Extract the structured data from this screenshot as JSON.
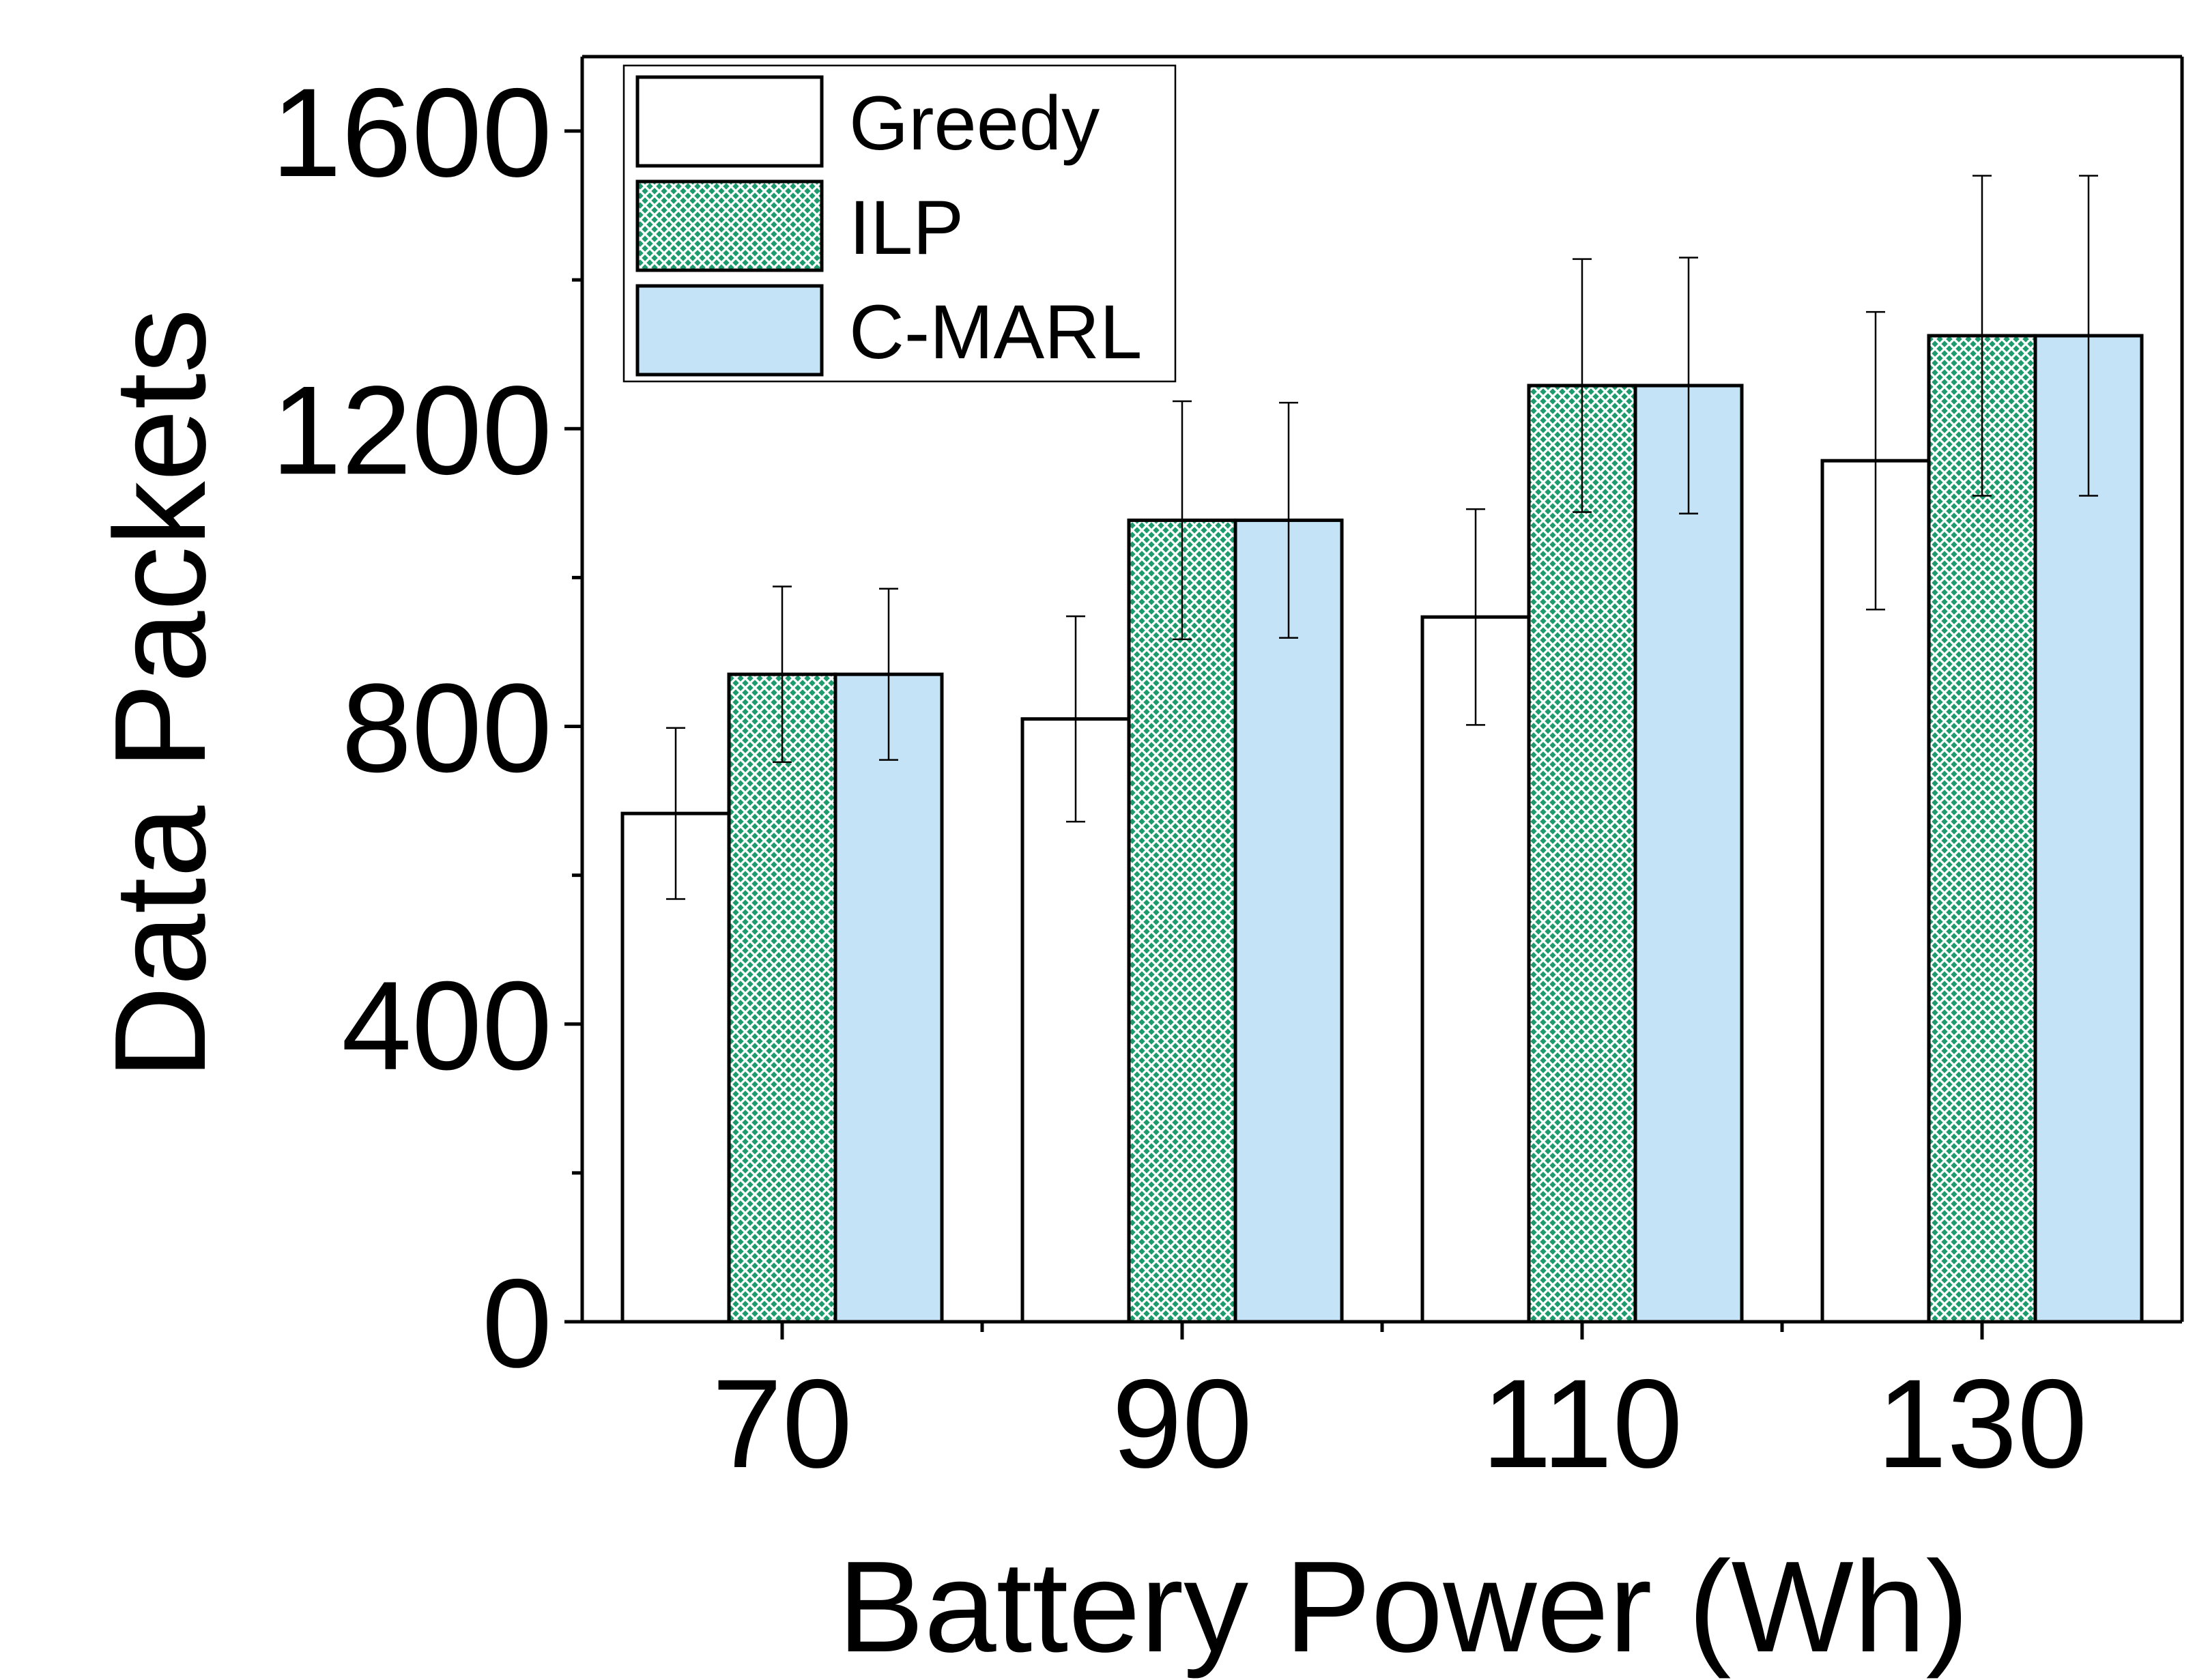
{
  "chart_data": {
    "type": "bar",
    "xlabel": "Battery Power (Wh)",
    "ylabel": "Data Packets",
    "categories": [
      "70",
      "90",
      "110",
      "130"
    ],
    "ylim": [
      0,
      1700
    ],
    "yticks": [
      0,
      400,
      800,
      1200,
      1600
    ],
    "yticks_minor": [
      200,
      600,
      1000,
      1400
    ],
    "grid": false,
    "legend_position": "top-left",
    "series": [
      {
        "name": "Greedy",
        "values": [
          683,
          810,
          947,
          1157
        ],
        "error": [
          115,
          138,
          145,
          200
        ],
        "fill": "#ffffff",
        "pattern": "none"
      },
      {
        "name": "ILP",
        "values": [
          870,
          1077,
          1258,
          1325
        ],
        "error": [
          118,
          160,
          170,
          215
        ],
        "fill": "#1e9b6e",
        "pattern": "crosshatch"
      },
      {
        "name": "C-MARL",
        "values": [
          870,
          1077,
          1258,
          1325
        ],
        "error": [
          115,
          158,
          172,
          215
        ],
        "fill": "#c5e3f7",
        "pattern": "none"
      }
    ]
  }
}
